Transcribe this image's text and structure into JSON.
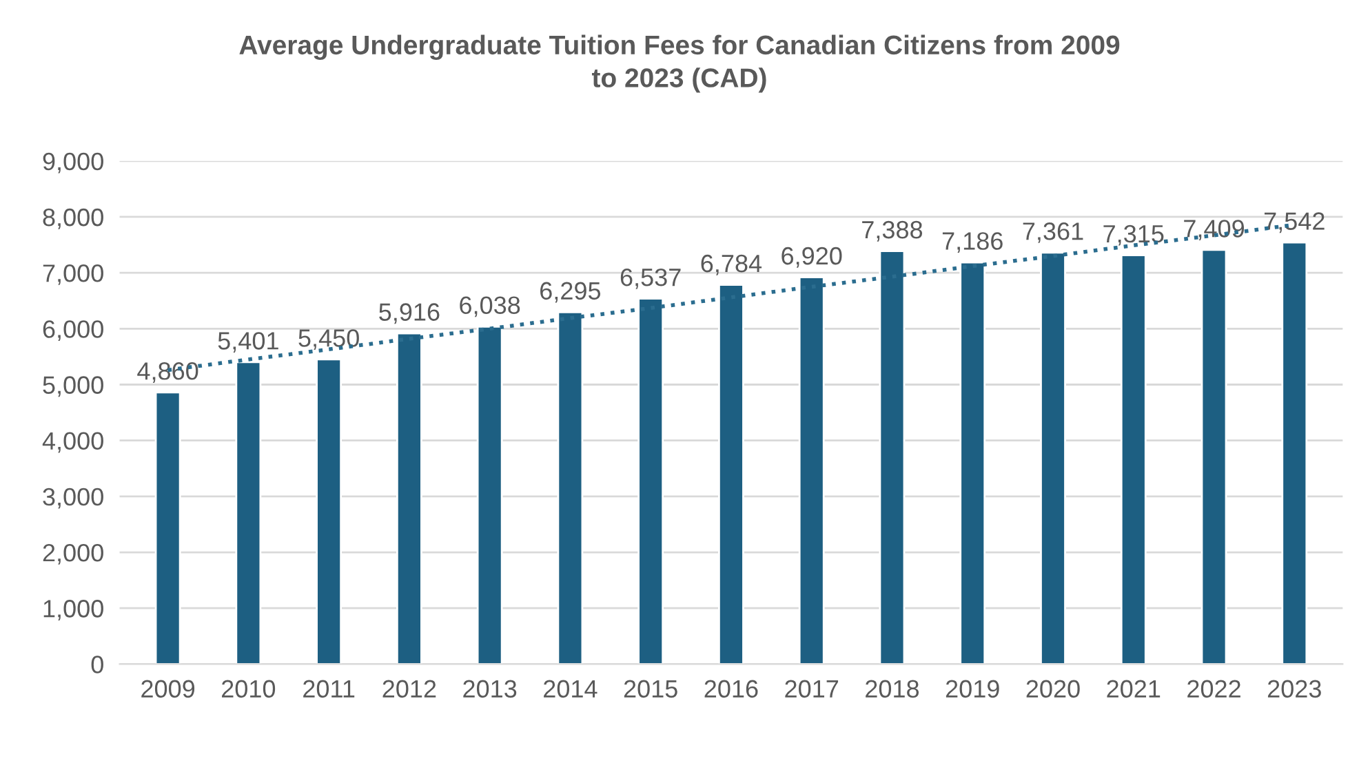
{
  "chart_data": {
    "type": "bar",
    "title": "Average Undergraduate Tuition Fees for Canadian Citizens from 2009\nto 2023 (CAD)",
    "categories": [
      "2009",
      "2010",
      "2011",
      "2012",
      "2013",
      "2014",
      "2015",
      "2016",
      "2017",
      "2018",
      "2019",
      "2020",
      "2021",
      "2022",
      "2023"
    ],
    "series": [
      {
        "color": "#1d5f82",
        "values": [
          4860,
          5401,
          5450,
          5916,
          6038,
          6295,
          6537,
          6784,
          6920,
          7388,
          7186,
          7361,
          7315,
          7409,
          7542
        ],
        "value_labels": [
          "4,860",
          "5,401",
          "5,450",
          "5,916",
          "6,038",
          "6,295",
          "6,537",
          "6,784",
          "6,920",
          "7,388",
          "7,186",
          "7,361",
          "7,315",
          "7,409",
          "7,542"
        ]
      },
      {
        "type": "line",
        "color": "#2b6d8f",
        "line_style": "dotted",
        "values": [
          5260,
          5450,
          5630,
          5820,
          6000,
          6190,
          6370,
          6560,
          6750,
          6930,
          7120,
          7300,
          7490,
          7670,
          7860
        ]
      }
    ],
    "ylim": [
      0,
      9000
    ],
    "yticks": [
      {
        "value": 0,
        "label": "0"
      },
      {
        "value": 1000,
        "label": "1,000"
      },
      {
        "value": 2000,
        "label": "2,000"
      },
      {
        "value": 3000,
        "label": "3,000"
      },
      {
        "value": 4000,
        "label": "4,000"
      },
      {
        "value": 5000,
        "label": "5,000"
      },
      {
        "value": 6000,
        "label": "6,000"
      },
      {
        "value": 7000,
        "label": "7,000"
      },
      {
        "value": 8000,
        "label": "8,000"
      },
      {
        "value": 9000,
        "label": "9,000"
      }
    ],
    "grid": "y",
    "legend": false
  }
}
